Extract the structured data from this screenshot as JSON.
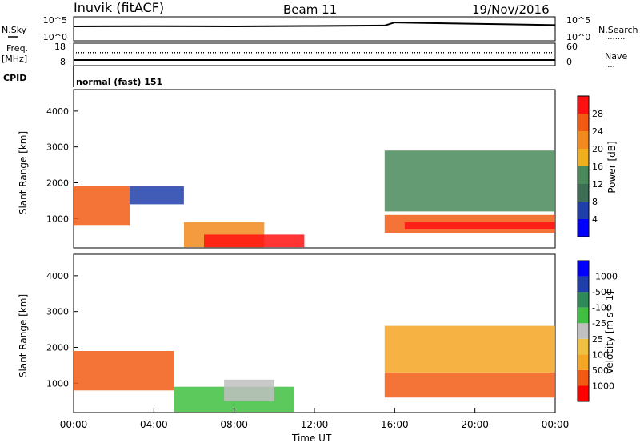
{
  "header": {
    "site": "Inuvik (fitACF)",
    "beam": "Beam 11",
    "date": "19/Nov/2016"
  },
  "chart_data": [
    {
      "type": "line",
      "name": "noise",
      "labels": {
        "left": "N.Sky",
        "right": "N.Search",
        "right_marker": "........"
      },
      "y_ticks_left": [
        "10^5",
        "10^0"
      ],
      "y_ticks_right": [
        "10^5",
        "10^0"
      ],
      "series": [
        {
          "style": "solid",
          "x": [
            0,
            4,
            8,
            12,
            15.5,
            16,
            20,
            24
          ],
          "values": [
            3.3,
            3.35,
            3.3,
            3.4,
            3.5,
            4.2,
            3.9,
            3.6
          ]
        }
      ]
    },
    {
      "type": "line",
      "name": "frequency",
      "labels": {
        "left": "Freq.",
        "left_units": "[MHz]",
        "right": "Nave",
        "right_marker": "....",
        "cpid": "CPID"
      },
      "y_ticks_left": [
        "18",
        "8"
      ],
      "y_ticks_right": [
        "60",
        "0"
      ],
      "series": [
        {
          "style": "solid",
          "x": [
            0,
            24
          ],
          "values": [
            10.5,
            10.5
          ]
        },
        {
          "style": "dotted",
          "x": [
            0,
            24
          ],
          "values": [
            13.8,
            13.8
          ]
        }
      ]
    },
    {
      "type": "label",
      "name": "cpid",
      "text": "normal (fast) 151"
    },
    {
      "type": "heatmap",
      "name": "power",
      "ylabel": "Slant Range [km]",
      "xlim": [
        0,
        24
      ],
      "ylim": [
        180,
        4600
      ],
      "y_ticks": [
        "1000",
        "2000",
        "3000",
        "4000"
      ],
      "colorbar": {
        "label": "Power [dB]",
        "colors": [
          "#0000ff",
          "#1f3faa",
          "#3b6e55",
          "#4a8a5a",
          "#f0b01e",
          "#f28a1e",
          "#f25a14",
          "#ff1010"
        ],
        "ticks": [
          "4",
          "8",
          "12",
          "16",
          "20",
          "24",
          "28"
        ]
      },
      "echo_bands": [
        {
          "t0": 0.0,
          "t1": 2.8,
          "r0": 800,
          "r1": 1900,
          "level": 6
        },
        {
          "t0": 2.8,
          "t1": 5.5,
          "r0": 1400,
          "r1": 1900,
          "level": 1
        },
        {
          "t0": 5.5,
          "t1": 9.5,
          "r0": 200,
          "r1": 900,
          "level": 5
        },
        {
          "t0": 6.5,
          "t1": 11.5,
          "r0": 200,
          "r1": 550,
          "level": 7
        },
        {
          "t0": 15.5,
          "t1": 24.0,
          "r0": 600,
          "r1": 1100,
          "level": 6
        },
        {
          "t0": 16.5,
          "t1": 24.0,
          "r0": 700,
          "r1": 900,
          "level": 7
        },
        {
          "t0": 15.5,
          "t1": 24.0,
          "r0": 1200,
          "r1": 2900,
          "level": 3
        }
      ]
    },
    {
      "type": "heatmap",
      "name": "velocity",
      "ylabel": "Slant Range [km]",
      "xlabel": "Time UT",
      "xlim": [
        0,
        24
      ],
      "ylim": [
        180,
        4600
      ],
      "x_ticks": [
        "00:00",
        "04:00",
        "08:00",
        "12:00",
        "16:00",
        "20:00",
        "00:00"
      ],
      "y_ticks": [
        "1000",
        "2000",
        "3000",
        "4000"
      ],
      "colorbar": {
        "label": "Velocity [m s^-1]",
        "colors": [
          "#ff0000",
          "#f25a14",
          "#f5a623",
          "#f0c040",
          "#c0c0c0",
          "#40c040",
          "#2e8b57",
          "#1f3faa",
          "#0000ff"
        ],
        "ticks": [
          "1000",
          "500",
          "100",
          "25",
          "-25",
          "-100",
          "-500",
          "-1000"
        ]
      },
      "echo_bands": [
        {
          "t0": 0.0,
          "t1": 5.0,
          "r0": 800,
          "r1": 1900,
          "level": 1
        },
        {
          "t0": 5.0,
          "t1": 11.0,
          "r0": 200,
          "r1": 900,
          "level": 5
        },
        {
          "t0": 7.5,
          "t1": 10.0,
          "r0": 500,
          "r1": 1100,
          "level": 4
        },
        {
          "t0": 15.5,
          "t1": 24.0,
          "r0": 600,
          "r1": 1300,
          "level": 1
        },
        {
          "t0": 15.5,
          "t1": 24.0,
          "r0": 1300,
          "r1": 2600,
          "level": 2
        }
      ]
    }
  ]
}
